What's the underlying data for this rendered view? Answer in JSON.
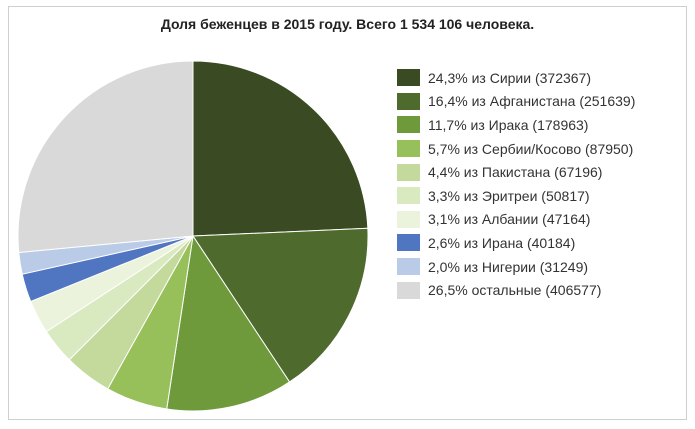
{
  "chart_data": {
    "type": "pie",
    "title": "Доля беженцев в 2015 году. Всего 1 534 106 человека.",
    "legend_position": "right",
    "start_angle_deg": 0,
    "direction": "clockwise",
    "slices": [
      {
        "label": "24,3% из Сирии (372367)",
        "percent": 24.3,
        "value": 372367,
        "color": "#3a4a22"
      },
      {
        "label": "16,4% из Афганистана (251639)",
        "percent": 16.4,
        "value": 251639,
        "color": "#4e6a2d"
      },
      {
        "label": "11,7% из Ирака (178963)",
        "percent": 11.7,
        "value": 178963,
        "color": "#6e9a3c"
      },
      {
        "label": "5,7% из Сербии/Косово (87950)",
        "percent": 5.7,
        "value": 87950,
        "color": "#97c05a"
      },
      {
        "label": "4,4% из Пакистана (67196)",
        "percent": 4.4,
        "value": 67196,
        "color": "#c3da9c"
      },
      {
        "label": "3,3% из Эритреи (50817)",
        "percent": 3.3,
        "value": 50817,
        "color": "#d9e9c0"
      },
      {
        "label": "3,1% из Албании (47164)",
        "percent": 3.1,
        "value": 47164,
        "color": "#ebf3dd"
      },
      {
        "label": "2,6% из Ирана (40184)",
        "percent": 2.6,
        "value": 40184,
        "color": "#5076c2"
      },
      {
        "label": "2,0% из Нигерии (31249)",
        "percent": 2.0,
        "value": 31249,
        "color": "#b9cbe6"
      },
      {
        "label": "26,5% остальные (406577)",
        "percent": 26.5,
        "value": 406577,
        "color": "#d9d9d9"
      }
    ]
  }
}
